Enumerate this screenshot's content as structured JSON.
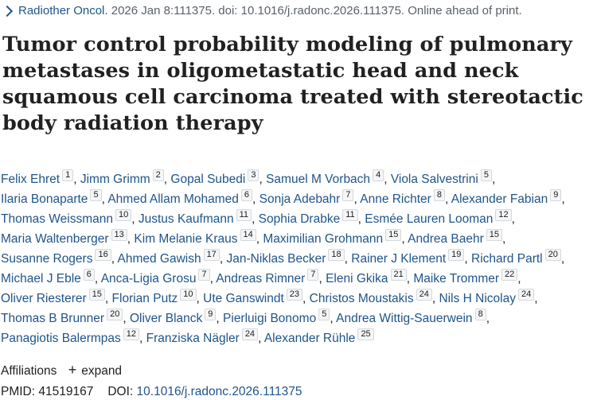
{
  "citation": {
    "journal": "Radiother Oncol.",
    "details": " 2026 Jan 8:111375. doi: 10.1016/j.radonc.2026.111375. Online ahead of print."
  },
  "title": "Tumor control probability modeling of pulmonary metastases in oligometastatic head and neck squamous cell carcinoma treated with stereotactic body radiation therapy",
  "authors": [
    {
      "name": "Felix Ehret",
      "aff": "1"
    },
    {
      "name": "Jimm Grimm",
      "aff": "2"
    },
    {
      "name": "Gopal Subedi",
      "aff": "3"
    },
    {
      "name": "Samuel M Vorbach",
      "aff": "4"
    },
    {
      "name": "Viola Salvestrini",
      "aff": "5"
    },
    {
      "name": "Ilaria Bonaparte",
      "aff": "5"
    },
    {
      "name": "Ahmed Allam Mohamed",
      "aff": "6"
    },
    {
      "name": "Sonja Adebahr",
      "aff": "7"
    },
    {
      "name": "Anne Richter",
      "aff": "8"
    },
    {
      "name": "Alexander Fabian",
      "aff": "9"
    },
    {
      "name": "Thomas Weissmann",
      "aff": "10"
    },
    {
      "name": "Justus Kaufmann",
      "aff": "11"
    },
    {
      "name": "Sophia Drabke",
      "aff": "11"
    },
    {
      "name": "Esmée Lauren Looman",
      "aff": "12"
    },
    {
      "name": "Maria Waltenberger",
      "aff": "13"
    },
    {
      "name": "Kim Melanie Kraus",
      "aff": "14"
    },
    {
      "name": "Maximilian Grohmann",
      "aff": "15"
    },
    {
      "name": "Andrea Baehr",
      "aff": "15"
    },
    {
      "name": "Susanne Rogers",
      "aff": "16"
    },
    {
      "name": "Ahmed Gawish",
      "aff": "17"
    },
    {
      "name": "Jan-Niklas Becker",
      "aff": "18"
    },
    {
      "name": "Rainer J Klement",
      "aff": "19"
    },
    {
      "name": "Richard Partl",
      "aff": "20"
    },
    {
      "name": "Michael J Eble",
      "aff": "6"
    },
    {
      "name": "Anca-Ligia Grosu",
      "aff": "7"
    },
    {
      "name": "Andreas Rimner",
      "aff": "7"
    },
    {
      "name": "Eleni Gkika",
      "aff": "21"
    },
    {
      "name": "Maike Trommer",
      "aff": "22"
    },
    {
      "name": "Oliver Riesterer",
      "aff": "15"
    },
    {
      "name": "Florian Putz",
      "aff": "10"
    },
    {
      "name": "Ute Ganswindt",
      "aff": "23"
    },
    {
      "name": "Christos Moustakis",
      "aff": "24"
    },
    {
      "name": "Nils H Nicolay",
      "aff": "24"
    },
    {
      "name": "Thomas B Brunner",
      "aff": "20"
    },
    {
      "name": "Oliver Blanck",
      "aff": "9"
    },
    {
      "name": "Pierluigi Bonomo",
      "aff": "5"
    },
    {
      "name": "Andrea Wittig-Sauerwein",
      "aff": "8"
    },
    {
      "name": "Panagiotis Balermpas",
      "aff": "12"
    },
    {
      "name": "Franziska Nägler",
      "aff": "24"
    },
    {
      "name": "Alexander Rühle",
      "aff": "25"
    }
  ],
  "affiliations": {
    "label": "Affiliations",
    "expand_icon": "plus-icon",
    "expand_label": "expand"
  },
  "ids": {
    "pmid_label": "PMID:",
    "pmid": "41519167",
    "doi_label": "DOI:",
    "doi": "10.1016/j.radonc.2026.111375"
  },
  "colors": {
    "link": "#20558a",
    "text": "#212121",
    "muted": "#5b616b"
  }
}
